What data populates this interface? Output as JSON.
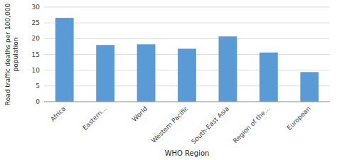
{
  "chart_data": {
    "type": "bar",
    "categories": [
      "Africa",
      "Eastern...",
      "World",
      "Western Pacific",
      "South-East Asia",
      "Region of the...",
      "European"
    ],
    "values": [
      26.6,
      18.0,
      18.2,
      16.8,
      20.7,
      15.6,
      9.4
    ],
    "color": "#5B9BD5",
    "xlabel": "WHO Region",
    "ylabel": "Road traffic deaths per 100,000\npopulation",
    "ylim": [
      0,
      30
    ],
    "yticks": [
      0,
      5,
      10,
      15,
      20,
      25,
      30
    ],
    "grid": true
  }
}
